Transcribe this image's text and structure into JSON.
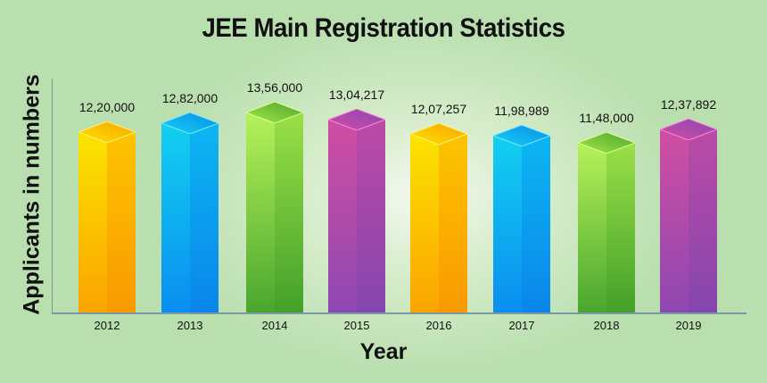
{
  "chart_data": {
    "type": "bar",
    "title": "JEE Main Registration Statistics",
    "xlabel": "Year",
    "ylabel": "Applicants in numbers",
    "categories": [
      "2012",
      "2013",
      "2014",
      "2015",
      "2016",
      "2017",
      "2018",
      "2019"
    ],
    "values": [
      1220000,
      1282000,
      1356000,
      1304217,
      1207257,
      1198989,
      1148000,
      1237892
    ],
    "value_labels": [
      "12,20,000",
      "12,82,000",
      "13,56,000",
      "13,04,217",
      "12,07,257",
      "11,98,989",
      "11,48,000",
      "12,37,892"
    ],
    "grid": false,
    "legend": "none",
    "style": "3d-bars"
  },
  "colors": {
    "yellow": "#f7c600",
    "blue": "#12a6ea",
    "green": "#7cc83c",
    "purple": "#a14aa8",
    "background": "#b8dead",
    "axis": "#7a99a4"
  }
}
